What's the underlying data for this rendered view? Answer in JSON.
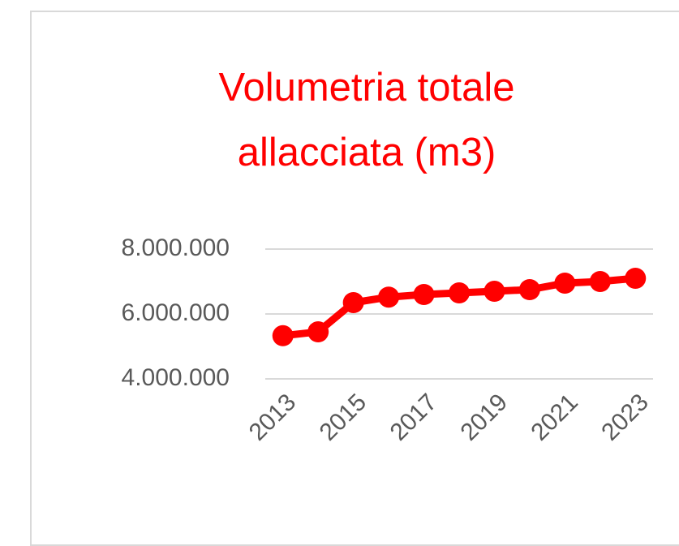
{
  "chart_data": {
    "type": "line",
    "title": "Volumetria totale allacciata (m3)",
    "categories": [
      "2013",
      null,
      "2015",
      null,
      "2017",
      null,
      "2019",
      null,
      "2021",
      null,
      "2023"
    ],
    "series": [
      {
        "name": "Volumetria",
        "color": "#ff0000",
        "values": [
          5330000,
          5450000,
          6350000,
          6520000,
          6600000,
          6650000,
          6700000,
          6750000,
          6950000,
          7000000,
          7100000
        ]
      }
    ],
    "ylim": [
      4000000,
      8000000
    ],
    "yticks": [
      {
        "value": 4000000,
        "label": "4.000.000"
      },
      {
        "value": 6000000,
        "label": "6.000.000"
      },
      {
        "value": 8000000,
        "label": "8.000.000"
      }
    ],
    "grid": true
  }
}
